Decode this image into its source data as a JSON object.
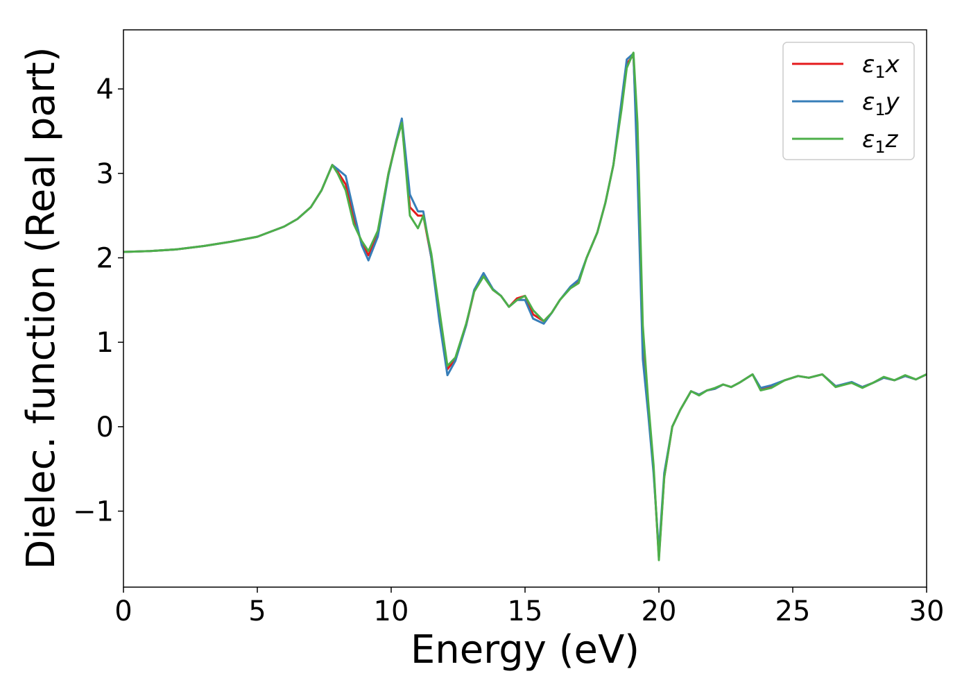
{
  "chart_data": {
    "type": "line",
    "xlabel": "Energy (eV)",
    "ylabel": "Dielec. function (Real part)",
    "xlim": [
      0,
      30
    ],
    "ylim": [
      -1.9,
      4.7
    ],
    "xticks": [
      0,
      5,
      10,
      15,
      20,
      25,
      30
    ],
    "yticks": [
      -1,
      0,
      1,
      2,
      3,
      4
    ],
    "xtick_labels": [
      "0",
      "5",
      "10",
      "15",
      "20",
      "25",
      "30"
    ],
    "ytick_labels": [
      "−1",
      "0",
      "1",
      "2",
      "3",
      "4"
    ],
    "grid": false,
    "legend_position": "top-right",
    "series": [
      {
        "name": "ε1x",
        "color": "#e41a1c",
        "x": [
          0,
          1,
          2,
          3,
          4,
          5,
          6,
          6.5,
          7,
          7.4,
          7.8,
          8.0,
          8.3,
          8.6,
          8.9,
          9.15,
          9.5,
          9.9,
          10.2,
          10.4,
          10.7,
          11.0,
          11.2,
          11.5,
          11.8,
          12.1,
          12.4,
          12.8,
          13.1,
          13.45,
          13.8,
          14.1,
          14.4,
          14.7,
          15.0,
          15.3,
          15.7,
          16.0,
          16.3,
          16.7,
          17.0,
          17.3,
          17.7,
          18.0,
          18.3,
          18.6,
          18.8,
          19.05,
          19.2,
          19.4,
          19.6,
          19.8,
          20.0,
          20.2,
          20.5,
          20.8,
          21.2,
          21.5,
          21.8,
          22.1,
          22.4,
          22.7,
          23.0,
          23.5,
          23.8,
          24.2,
          24.7,
          25.2,
          25.6,
          26.1,
          26.6,
          27.2,
          27.6,
          28.0,
          28.4,
          28.8,
          29.2,
          29.6,
          30
        ],
        "y": [
          2.07,
          2.08,
          2.1,
          2.14,
          2.19,
          2.25,
          2.37,
          2.46,
          2.6,
          2.8,
          3.1,
          3.02,
          2.87,
          2.45,
          2.18,
          2.03,
          2.3,
          3.0,
          3.4,
          3.6,
          2.6,
          2.5,
          2.5,
          2.0,
          1.3,
          0.68,
          0.8,
          1.2,
          1.6,
          1.8,
          1.62,
          1.55,
          1.42,
          1.52,
          1.55,
          1.33,
          1.25,
          1.35,
          1.5,
          1.65,
          1.72,
          2.0,
          2.3,
          2.65,
          3.1,
          3.8,
          4.3,
          4.4,
          3.2,
          1.0,
          0.2,
          -0.5,
          -1.55,
          -0.6,
          0.0,
          0.2,
          0.42,
          0.38,
          0.43,
          0.45,
          0.5,
          0.47,
          0.52,
          0.62,
          0.44,
          0.47,
          0.55,
          0.6,
          0.58,
          0.62,
          0.48,
          0.52,
          0.47,
          0.52,
          0.58,
          0.55,
          0.6,
          0.56,
          0.62
        ]
      },
      {
        "name": "ε1y",
        "color": "#377eb8",
        "x": [
          0,
          1,
          2,
          3,
          4,
          5,
          6,
          6.5,
          7,
          7.4,
          7.8,
          8.0,
          8.3,
          8.6,
          8.9,
          9.15,
          9.5,
          9.9,
          10.2,
          10.4,
          10.7,
          11.0,
          11.2,
          11.5,
          11.8,
          12.1,
          12.4,
          12.8,
          13.1,
          13.45,
          13.8,
          14.1,
          14.4,
          14.7,
          15.0,
          15.3,
          15.7,
          16.0,
          16.3,
          16.7,
          17.0,
          17.3,
          17.7,
          18.0,
          18.3,
          18.6,
          18.8,
          19.05,
          19.2,
          19.4,
          19.6,
          19.8,
          20.0,
          20.2,
          20.5,
          20.8,
          21.2,
          21.5,
          21.8,
          22.1,
          22.4,
          22.7,
          23.0,
          23.5,
          23.8,
          24.2,
          24.7,
          25.2,
          25.6,
          26.1,
          26.6,
          27.2,
          27.6,
          28.0,
          28.4,
          28.8,
          29.2,
          29.6,
          30
        ],
        "y": [
          2.07,
          2.08,
          2.1,
          2.14,
          2.19,
          2.25,
          2.37,
          2.46,
          2.6,
          2.8,
          3.1,
          3.05,
          2.97,
          2.55,
          2.15,
          1.97,
          2.25,
          2.98,
          3.4,
          3.65,
          2.75,
          2.55,
          2.55,
          2.0,
          1.25,
          0.61,
          0.78,
          1.2,
          1.62,
          1.82,
          1.63,
          1.55,
          1.42,
          1.5,
          1.5,
          1.28,
          1.22,
          1.35,
          1.5,
          1.66,
          1.74,
          2.0,
          2.3,
          2.65,
          3.1,
          3.85,
          4.35,
          4.42,
          3.0,
          0.8,
          0.15,
          -0.55,
          -1.48,
          -0.55,
          0.0,
          0.2,
          0.42,
          0.38,
          0.43,
          0.45,
          0.5,
          0.47,
          0.52,
          0.62,
          0.46,
          0.49,
          0.55,
          0.6,
          0.58,
          0.62,
          0.48,
          0.53,
          0.47,
          0.52,
          0.58,
          0.55,
          0.6,
          0.56,
          0.62
        ]
      },
      {
        "name": "ε1z",
        "color": "#4daf4a",
        "x": [
          0,
          1,
          2,
          3,
          4,
          5,
          6,
          6.5,
          7,
          7.4,
          7.8,
          8.0,
          8.3,
          8.6,
          8.9,
          9.15,
          9.5,
          9.9,
          10.2,
          10.4,
          10.7,
          11.0,
          11.2,
          11.5,
          11.8,
          12.1,
          12.4,
          12.8,
          13.1,
          13.45,
          13.8,
          14.1,
          14.4,
          14.7,
          15.0,
          15.3,
          15.7,
          16.0,
          16.3,
          16.7,
          17.0,
          17.3,
          17.7,
          18.0,
          18.3,
          18.6,
          18.8,
          19.05,
          19.2,
          19.4,
          19.6,
          19.8,
          20.0,
          20.2,
          20.5,
          20.8,
          21.2,
          21.5,
          21.8,
          22.1,
          22.4,
          22.7,
          23.0,
          23.5,
          23.8,
          24.2,
          24.7,
          25.2,
          25.6,
          26.1,
          26.6,
          27.2,
          27.6,
          28.0,
          28.4,
          28.8,
          29.2,
          29.6,
          30
        ],
        "y": [
          2.07,
          2.08,
          2.1,
          2.14,
          2.19,
          2.25,
          2.37,
          2.46,
          2.6,
          2.8,
          3.1,
          3.0,
          2.8,
          2.4,
          2.2,
          2.08,
          2.32,
          3.0,
          3.38,
          3.6,
          2.5,
          2.35,
          2.5,
          2.05,
          1.38,
          0.72,
          0.82,
          1.22,
          1.6,
          1.78,
          1.62,
          1.55,
          1.42,
          1.5,
          1.55,
          1.38,
          1.25,
          1.35,
          1.5,
          1.64,
          1.7,
          2.0,
          2.3,
          2.65,
          3.1,
          3.75,
          4.25,
          4.43,
          3.6,
          1.2,
          0.3,
          -0.45,
          -1.58,
          -0.6,
          0.0,
          0.2,
          0.42,
          0.37,
          0.43,
          0.46,
          0.5,
          0.47,
          0.52,
          0.62,
          0.43,
          0.46,
          0.55,
          0.6,
          0.58,
          0.62,
          0.47,
          0.52,
          0.46,
          0.52,
          0.59,
          0.55,
          0.61,
          0.56,
          0.62
        ]
      }
    ]
  }
}
